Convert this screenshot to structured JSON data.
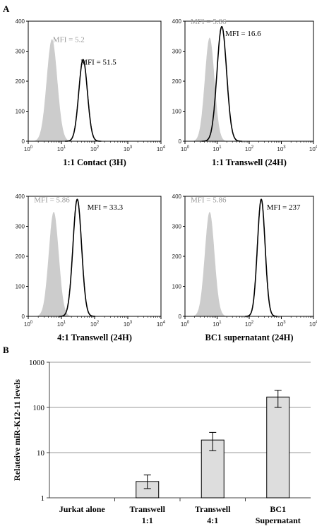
{
  "panel_labels": {
    "a": "A",
    "b": "B"
  },
  "chart_data": [
    {
      "type": "area",
      "subtype": "flow-cytometry-histogram",
      "title": "1:1 Contact (3H)",
      "xscale": "log",
      "xlim": [
        1,
        10000
      ],
      "ylim": [
        0,
        400
      ],
      "yticks": [
        0,
        100,
        200,
        300,
        400
      ],
      "series": [
        {
          "role": "control",
          "fill": "#cccccc",
          "peak_x": 5.2,
          "peak_y": 340,
          "log_width": 0.16
        },
        {
          "role": "sample",
          "stroke": "#000000",
          "peak_x": 45,
          "peak_y": 272,
          "log_width": 0.13
        }
      ],
      "annotations": [
        {
          "text": "MFI =  5.2",
          "color": "#999999",
          "x": 5.5,
          "y": 340,
          "anchor": "start"
        },
        {
          "text": "MFI =  51.5",
          "color": "#000000",
          "x": 38,
          "y": 265,
          "anchor": "start"
        }
      ]
    },
    {
      "type": "area",
      "subtype": "flow-cytometry-histogram",
      "title": "1:1 Transwell (24H)",
      "xscale": "log",
      "xlim": [
        1,
        10000
      ],
      "ylim": [
        0,
        400
      ],
      "yticks": [
        0,
        100,
        200,
        300,
        400
      ],
      "series": [
        {
          "role": "control",
          "fill": "#cccccc",
          "peak_x": 5.86,
          "peak_y": 345,
          "log_width": 0.15
        },
        {
          "role": "sample",
          "stroke": "#000000",
          "peak_x": 14,
          "peak_y": 382,
          "log_width": 0.15
        }
      ],
      "annotations": [
        {
          "text": "MFI = 5.86",
          "color": "#999999",
          "x": 1.5,
          "y": 400,
          "anchor": "start"
        },
        {
          "text": "MFI =  16.6",
          "color": "#000000",
          "x": 18,
          "y": 360,
          "anchor": "start"
        }
      ]
    },
    {
      "type": "area",
      "subtype": "flow-cytometry-histogram",
      "title": "4:1 Transwell (24H)",
      "xscale": "log",
      "xlim": [
        1,
        10000
      ],
      "ylim": [
        0,
        400
      ],
      "yticks": [
        0,
        100,
        200,
        300,
        400
      ],
      "series": [
        {
          "role": "control",
          "fill": "#cccccc",
          "peak_x": 5.86,
          "peak_y": 348,
          "log_width": 0.15
        },
        {
          "role": "sample",
          "stroke": "#000000",
          "peak_x": 30,
          "peak_y": 390,
          "log_width": 0.13
        }
      ],
      "annotations": [
        {
          "text": "MFI = 5.86",
          "color": "#999999",
          "x": 1.5,
          "y": 390,
          "anchor": "start"
        },
        {
          "text": "MFI =  33.3",
          "color": "#000000",
          "x": 60,
          "y": 365,
          "anchor": "start"
        }
      ]
    },
    {
      "type": "area",
      "subtype": "flow-cytometry-histogram",
      "title": "BC1 supernatant (24H)",
      "xscale": "log",
      "xlim": [
        1,
        10000
      ],
      "ylim": [
        0,
        400
      ],
      "yticks": [
        0,
        100,
        200,
        300,
        400
      ],
      "series": [
        {
          "role": "control",
          "fill": "#cccccc",
          "peak_x": 5.86,
          "peak_y": 348,
          "log_width": 0.15
        },
        {
          "role": "sample",
          "stroke": "#000000",
          "peak_x": 237,
          "peak_y": 390,
          "log_width": 0.12
        }
      ],
      "annotations": [
        {
          "text": "MFI = 5.86",
          "color": "#999999",
          "x": 1.5,
          "y": 390,
          "anchor": "start"
        },
        {
          "text": "MFI =  237",
          "color": "#000000",
          "x": 350,
          "y": 365,
          "anchor": "start"
        }
      ]
    },
    {
      "type": "bar",
      "ylabel": "Relateive  miR-K12-11  levels",
      "yscale": "log",
      "ylim": [
        1,
        1000
      ],
      "yticks": [
        1,
        10,
        100,
        1000
      ],
      "grid": true,
      "categories": [
        [
          "Jurkat alone"
        ],
        [
          "Transwell",
          "1:1"
        ],
        [
          "Transwell",
          "4:1"
        ],
        [
          "BC1",
          "Supernatant"
        ]
      ],
      "values": [
        1,
        2.3,
        19,
        170
      ],
      "error_low": [
        1,
        1.6,
        11,
        100
      ],
      "error_high": [
        1,
        3.2,
        28,
        240
      ],
      "bar_color": "#dddddd"
    }
  ]
}
